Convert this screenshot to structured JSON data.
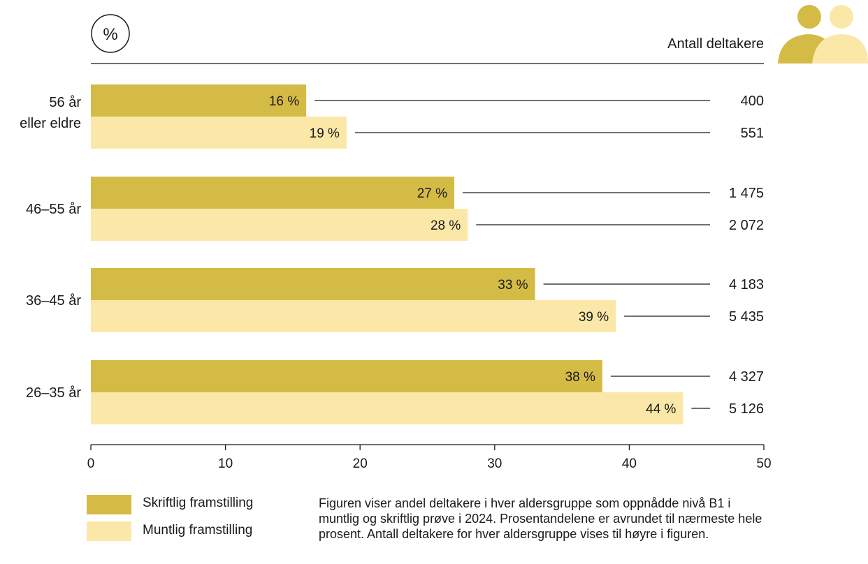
{
  "chart_data": {
    "type": "bar",
    "orientation": "horizontal",
    "unit_badge": "%",
    "count_header": "Antall deltakere",
    "categories": [
      "56 år eller eldre",
      "46–55 år",
      "36–45 år",
      "26–35 år"
    ],
    "series": [
      {
        "name": "Skriftlig framstilling",
        "color": "#d4bb45",
        "values": [
          16,
          27,
          33,
          38
        ],
        "value_labels": [
          "16 %",
          "27 %",
          "33 %",
          "38 %"
        ],
        "counts": [
          "400",
          "1 475",
          "4 183",
          "4 327"
        ]
      },
      {
        "name": "Muntlig framstilling",
        "color": "#fbe8a8",
        "values": [
          19,
          28,
          39,
          44
        ],
        "value_labels": [
          "19 %",
          "28 %",
          "39 %",
          "44 %"
        ],
        "counts": [
          "551",
          "2 072",
          "5 435",
          "5 126"
        ]
      }
    ],
    "xlim": [
      0,
      50
    ],
    "xticks": [
      "0",
      "10",
      "20",
      "30",
      "40",
      "50"
    ],
    "grid": false,
    "legend_position": "bottom-left",
    "note": "Figuren viser andel deltakere i hver aldersgruppe som oppnådde nivå B1 i muntlig og skriftlig prøve i 2024. Prosentandelene er avrundet til nærmeste hele prosent. Antall deltakere for hver aldersgruppe vises til høyre i figuren."
  }
}
